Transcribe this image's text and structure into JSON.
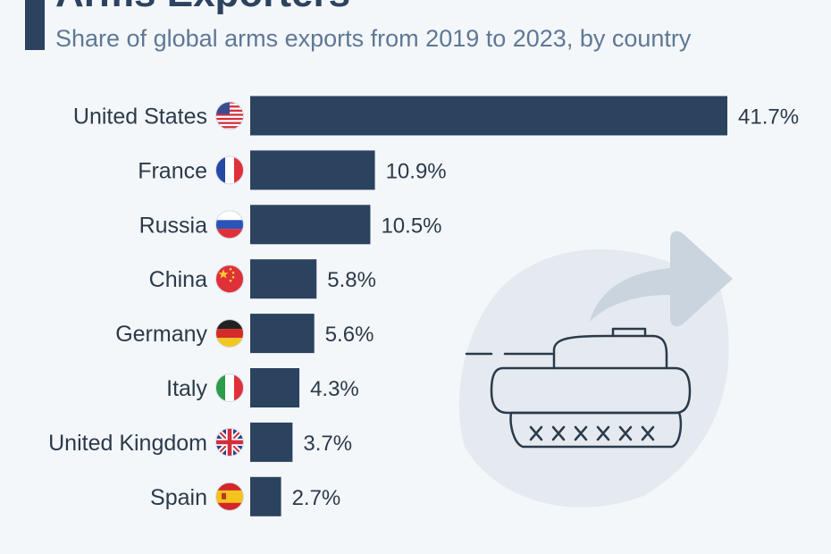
{
  "header": {
    "title": "Arms Exporters",
    "subtitle": "Share of global arms exports from 2019 to 2023, by country"
  },
  "colors": {
    "bar": "#2b435f",
    "text": "#2b3a4a",
    "subtitle": "#5e7896",
    "background": "#f4f7fa",
    "illustration_bg": "#e4eaf0"
  },
  "chart_data": {
    "type": "bar",
    "orientation": "horizontal",
    "categories": [
      "United States",
      "France",
      "Russia",
      "China",
      "Germany",
      "Italy",
      "United Kingdom",
      "Spain"
    ],
    "values": [
      41.7,
      10.9,
      10.5,
      5.8,
      5.6,
      4.3,
      3.7,
      2.7
    ],
    "value_labels": [
      "41.7%",
      "10.9%",
      "10.5%",
      "5.8%",
      "5.6%",
      "4.3%",
      "3.7%",
      "2.7%"
    ],
    "flag_icons": [
      "us-flag-icon",
      "france-flag-icon",
      "russia-flag-icon",
      "china-flag-icon",
      "germany-flag-icon",
      "italy-flag-icon",
      "uk-flag-icon",
      "spain-flag-icon"
    ],
    "unit": "%",
    "grid": false
  },
  "illustration": {
    "icon": "tank-export-icon"
  }
}
